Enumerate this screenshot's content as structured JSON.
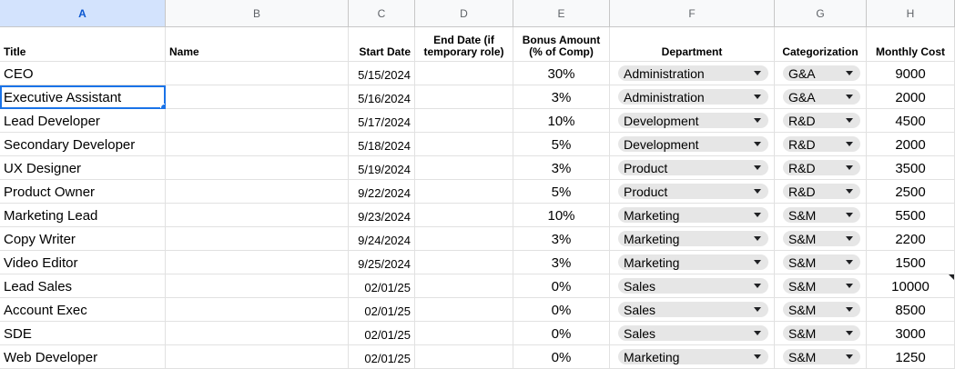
{
  "columns": [
    "A",
    "B",
    "C",
    "D",
    "E",
    "F",
    "G",
    "H"
  ],
  "headers": {
    "title": "Title",
    "name": "Name",
    "start_date": "Start Date",
    "end_date_line1": "End Date (if",
    "end_date_line2": "temporary role)",
    "bonus_line1": "Bonus Amount",
    "bonus_line2": "(% of Comp)",
    "department": "Department",
    "categorization": "Categorization",
    "monthly_cost": "Monthly Cost"
  },
  "rows": [
    {
      "title": "CEO",
      "name": "",
      "start": "5/15/2024",
      "end": "",
      "bonus": "30%",
      "dept": "Administration",
      "cat": "G&A",
      "cost": "9000"
    },
    {
      "title": "Executive Assistant",
      "name": "",
      "start": "5/16/2024",
      "end": "",
      "bonus": "3%",
      "dept": "Administration",
      "cat": "G&A",
      "cost": "2000"
    },
    {
      "title": "Lead Developer",
      "name": "",
      "start": "5/17/2024",
      "end": "",
      "bonus": "10%",
      "dept": "Development",
      "cat": "R&D",
      "cost": "4500"
    },
    {
      "title": "Secondary Developer",
      "name": "",
      "start": "5/18/2024",
      "end": "",
      "bonus": "5%",
      "dept": "Development",
      "cat": "R&D",
      "cost": "2000"
    },
    {
      "title": "UX Designer",
      "name": "",
      "start": "5/19/2024",
      "end": "",
      "bonus": "3%",
      "dept": "Product",
      "cat": "R&D",
      "cost": "3500"
    },
    {
      "title": "Product Owner",
      "name": "",
      "start": "9/22/2024",
      "end": "",
      "bonus": "5%",
      "dept": "Product",
      "cat": "R&D",
      "cost": "2500"
    },
    {
      "title": "Marketing Lead",
      "name": "",
      "start": "9/23/2024",
      "end": "",
      "bonus": "10%",
      "dept": "Marketing",
      "cat": "S&M",
      "cost": "5500"
    },
    {
      "title": "Copy Writer",
      "name": "",
      "start": "9/24/2024",
      "end": "",
      "bonus": "3%",
      "dept": "Marketing",
      "cat": "S&M",
      "cost": "2200"
    },
    {
      "title": "Video Editor",
      "name": "",
      "start": "9/25/2024",
      "end": "",
      "bonus": "3%",
      "dept": "Marketing",
      "cat": "S&M",
      "cost": "1500"
    },
    {
      "title": "Lead Sales",
      "name": "",
      "start": "02/01/25",
      "end": "",
      "bonus": "0%",
      "dept": "Sales",
      "cat": "S&M",
      "cost": "10000"
    },
    {
      "title": "Account Exec",
      "name": "",
      "start": "02/01/25",
      "end": "",
      "bonus": "0%",
      "dept": "Sales",
      "cat": "S&M",
      "cost": "8500"
    },
    {
      "title": "SDE",
      "name": "",
      "start": "02/01/25",
      "end": "",
      "bonus": "0%",
      "dept": "Sales",
      "cat": "S&M",
      "cost": "3000"
    },
    {
      "title": "Web Developer",
      "name": "",
      "start": "02/01/25",
      "end": "",
      "bonus": "0%",
      "dept": "Marketing",
      "cat": "S&M",
      "cost": "1250"
    }
  ],
  "selection": {
    "column": "A",
    "row_index": 1
  },
  "note_indicator_row_index": 9,
  "colors": {
    "selection": "#1a73e8",
    "chip": "#e6e6e6",
    "header_bg": "#f8f9fa"
  }
}
